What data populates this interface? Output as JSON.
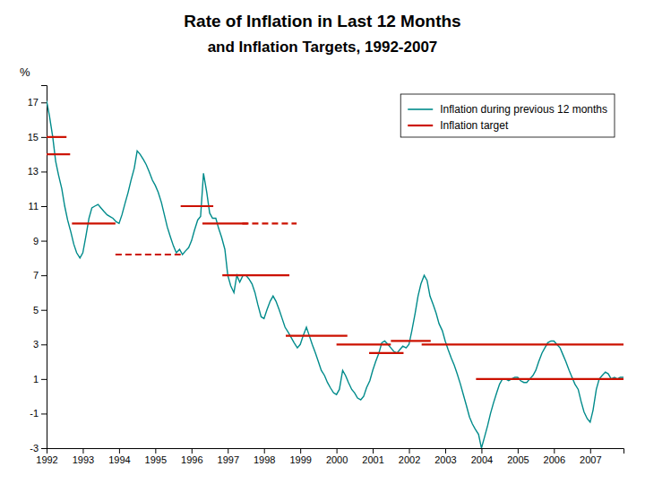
{
  "chart_data": {
    "type": "line",
    "title": "Rate of Inflation in Last 12 Months",
    "subtitle": "and Inflation Targets, 1992-2007",
    "ylabel": "%",
    "xlim": [
      1992,
      2007.92
    ],
    "xticks": [
      1992,
      1993,
      1994,
      1995,
      1996,
      1997,
      1998,
      1999,
      2000,
      2001,
      2002,
      2003,
      2004,
      2005,
      2006,
      2007
    ],
    "ylim": [
      -3,
      18
    ],
    "yticks": [
      -3,
      -1,
      1,
      3,
      5,
      7,
      9,
      11,
      13,
      15,
      17
    ],
    "grid": false,
    "legend": "upper right",
    "series": [
      {
        "name": "Inflation during previous 12 months",
        "color": "#008B8B",
        "type": "line",
        "x": [
          1992,
          1992.08,
          1992.17,
          1992.25,
          1992.33,
          1992.42,
          1992.5,
          1992.58,
          1992.67,
          1992.75,
          1992.83,
          1992.92,
          1993,
          1993.08,
          1993.17,
          1993.25,
          1993.33,
          1993.42,
          1993.5,
          1993.58,
          1993.67,
          1993.75,
          1993.83,
          1993.92,
          1994,
          1994.08,
          1994.17,
          1994.25,
          1994.33,
          1994.42,
          1994.5,
          1994.58,
          1994.67,
          1994.75,
          1994.83,
          1994.92,
          1995,
          1995.08,
          1995.17,
          1995.25,
          1995.33,
          1995.42,
          1995.5,
          1995.58,
          1995.67,
          1995.75,
          1995.83,
          1995.92,
          1996,
          1996.08,
          1996.17,
          1996.25,
          1996.33,
          1996.42,
          1996.5,
          1996.58,
          1996.67,
          1996.75,
          1996.83,
          1996.92,
          1997,
          1997.08,
          1997.17,
          1997.25,
          1997.33,
          1997.42,
          1997.5,
          1997.58,
          1997.67,
          1997.75,
          1997.83,
          1997.92,
          1998,
          1998.08,
          1998.17,
          1998.25,
          1998.33,
          1998.42,
          1998.5,
          1998.58,
          1998.67,
          1998.75,
          1998.83,
          1998.92,
          1999,
          1999.08,
          1999.17,
          1999.25,
          1999.33,
          1999.42,
          1999.5,
          1999.58,
          1999.67,
          1999.75,
          1999.83,
          1999.92,
          2000,
          2000.08,
          2000.17,
          2000.25,
          2000.33,
          2000.42,
          2000.5,
          2000.58,
          2000.67,
          2000.75,
          2000.83,
          2000.92,
          2001,
          2001.08,
          2001.17,
          2001.25,
          2001.33,
          2001.42,
          2001.5,
          2001.58,
          2001.67,
          2001.75,
          2001.83,
          2001.92,
          2002,
          2002.08,
          2002.17,
          2002.25,
          2002.33,
          2002.42,
          2002.5,
          2002.58,
          2002.67,
          2002.75,
          2002.83,
          2002.92,
          2003,
          2003.08,
          2003.17,
          2003.25,
          2003.33,
          2003.42,
          2003.5,
          2003.58,
          2003.67,
          2003.75,
          2003.83,
          2003.92,
          2004,
          2004.08,
          2004.17,
          2004.25,
          2004.33,
          2004.42,
          2004.5,
          2004.58,
          2004.67,
          2004.75,
          2004.83,
          2004.92,
          2005,
          2005.08,
          2005.17,
          2005.25,
          2005.33,
          2005.42,
          2005.5,
          2005.58,
          2005.67,
          2005.75,
          2005.83,
          2005.92,
          2006,
          2006.08,
          2006.17,
          2006.25,
          2006.33,
          2006.42,
          2006.5,
          2006.58,
          2006.67,
          2006.75,
          2006.83,
          2006.92,
          2007,
          2007.08,
          2007.17,
          2007.25,
          2007.33,
          2007.42,
          2007.5,
          2007.58,
          2007.67,
          2007.75,
          2007.83,
          2007.92
        ],
        "values": [
          17.1,
          16.2,
          15.0,
          13.6,
          12.8,
          12.0,
          11.0,
          10.2,
          9.5,
          8.8,
          8.3,
          8.0,
          8.3,
          9.2,
          10.3,
          10.9,
          11.0,
          11.1,
          10.9,
          10.7,
          10.5,
          10.4,
          10.3,
          10.1,
          10.0,
          10.5,
          11.2,
          11.8,
          12.5,
          13.2,
          14.2,
          14.0,
          13.7,
          13.4,
          13.0,
          12.5,
          12.2,
          11.8,
          11.2,
          10.5,
          9.8,
          9.2,
          8.7,
          8.3,
          8.5,
          8.2,
          8.4,
          8.6,
          9.0,
          9.6,
          10.2,
          10.4,
          12.9,
          11.8,
          10.6,
          10.3,
          10.3,
          9.7,
          9.2,
          8.5,
          7.0,
          6.4,
          6.0,
          7.0,
          6.6,
          7.0,
          7.0,
          6.8,
          6.5,
          6.0,
          5.3,
          4.6,
          4.5,
          5.0,
          5.5,
          5.8,
          5.5,
          5.0,
          4.5,
          4.0,
          3.7,
          3.4,
          3.1,
          2.8,
          3.0,
          3.5,
          4.0,
          3.5,
          3.0,
          2.5,
          2.0,
          1.5,
          1.2,
          0.8,
          0.5,
          0.2,
          0.1,
          0.4,
          1.5,
          1.2,
          0.8,
          0.4,
          0.2,
          -0.1,
          -0.2,
          0.0,
          0.5,
          0.9,
          1.5,
          2.0,
          2.5,
          3.1,
          3.2,
          3.0,
          2.8,
          2.6,
          2.5,
          2.7,
          2.9,
          2.8,
          3.0,
          3.8,
          4.8,
          5.8,
          6.5,
          7.0,
          6.7,
          5.8,
          5.3,
          4.8,
          4.2,
          3.8,
          3.2,
          2.7,
          2.2,
          1.8,
          1.3,
          0.7,
          0.1,
          -0.5,
          -1.2,
          -1.6,
          -1.9,
          -2.2,
          -3.0,
          -2.4,
          -1.7,
          -1.0,
          -0.4,
          0.2,
          0.7,
          1.0,
          1.0,
          0.9,
          1.0,
          1.1,
          1.1,
          0.9,
          0.8,
          0.8,
          1.0,
          1.2,
          1.5,
          2.0,
          2.5,
          2.8,
          3.1,
          3.2,
          3.2,
          3.0,
          2.8,
          2.4,
          2.0,
          1.5,
          1.1,
          0.7,
          0.4,
          -0.3,
          -0.9,
          -1.3,
          -1.5,
          -0.8,
          0.4,
          1.0,
          1.2,
          1.4,
          1.3,
          1.0,
          1.1,
          1.0,
          1.1,
          1.1
        ]
      },
      {
        "name": "Inflation target",
        "color": "#cc1100",
        "type": "segments",
        "segments": [
          {
            "x_start": 1992.0,
            "x_end": 1992.55,
            "value": 15.0,
            "line_style": "solid"
          },
          {
            "x_start": 1992.0,
            "x_end": 1992.65,
            "value": 14.0,
            "line_style": "solid"
          },
          {
            "x_start": 1992.7,
            "x_end": 1993.9,
            "value": 10.0,
            "line_style": "solid"
          },
          {
            "x_start": 1993.9,
            "x_end": 1995.7,
            "value": 8.2,
            "line_style": "dashed"
          },
          {
            "x_start": 1995.7,
            "x_end": 1996.6,
            "value": 11.0,
            "line_style": "solid"
          },
          {
            "x_start": 1996.3,
            "x_end": 1997.55,
            "value": 10.0,
            "line_style": "solid"
          },
          {
            "x_start": 1997.4,
            "x_end": 1998.9,
            "value": 10.0,
            "line_style": "dashed"
          },
          {
            "x_start": 1996.85,
            "x_end": 1998.7,
            "value": 7.0,
            "line_style": "solid"
          },
          {
            "x_start": 1998.6,
            "x_end": 2000.3,
            "value": 3.5,
            "line_style": "solid"
          },
          {
            "x_start": 2000.0,
            "x_end": 2001.5,
            "value": 3.0,
            "line_style": "solid"
          },
          {
            "x_start": 2000.9,
            "x_end": 2001.85,
            "value": 2.5,
            "line_style": "solid"
          },
          {
            "x_start": 2001.5,
            "x_end": 2002.6,
            "value": 3.2,
            "line_style": "solid"
          },
          {
            "x_start": 2002.35,
            "x_end": 2007.92,
            "value": 3.0,
            "line_style": "solid"
          },
          {
            "x_start": 2003.85,
            "x_end": 2007.92,
            "value": 1.0,
            "line_style": "solid"
          }
        ]
      }
    ]
  }
}
